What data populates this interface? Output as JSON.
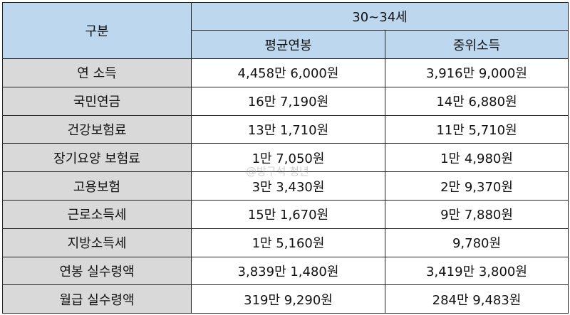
{
  "table": {
    "header": {
      "category": "구분",
      "group": "30~34세",
      "columns": [
        "평균연봉",
        "중위소득"
      ]
    },
    "rows": [
      {
        "label": "연 소득",
        "avg": "4,458만 6,000원",
        "median": "3,916만 9,000원"
      },
      {
        "label": "국민연금",
        "avg": "16만 7,190원",
        "median": "14만 6,880원"
      },
      {
        "label": "건강보험료",
        "avg": "13만 1,710원",
        "median": "11만 5,710원"
      },
      {
        "label": "장기요양 보험료",
        "avg": "1만 7,050원",
        "median": "1만 4,980원"
      },
      {
        "label": "고용보험",
        "avg": "3만 3,430원",
        "median": "2만 9,370원"
      },
      {
        "label": "근로소득세",
        "avg": "15만 1,670원",
        "median": "9만 7,880원"
      },
      {
        "label": "지방소득세",
        "avg": "1만 5,160원",
        "median": "9,780원"
      },
      {
        "label": "연봉 실수령액",
        "avg": "3,839만 1,480원",
        "median": "3,419만 3,800원"
      },
      {
        "label": "월급 실수령액",
        "avg": "319만 9,290원",
        "median": "284만 9,483원"
      }
    ]
  },
  "watermark": "@방구석 청년",
  "colors": {
    "header_bg": "#bdd7ee",
    "label_bg": "#d9d9d9"
  }
}
